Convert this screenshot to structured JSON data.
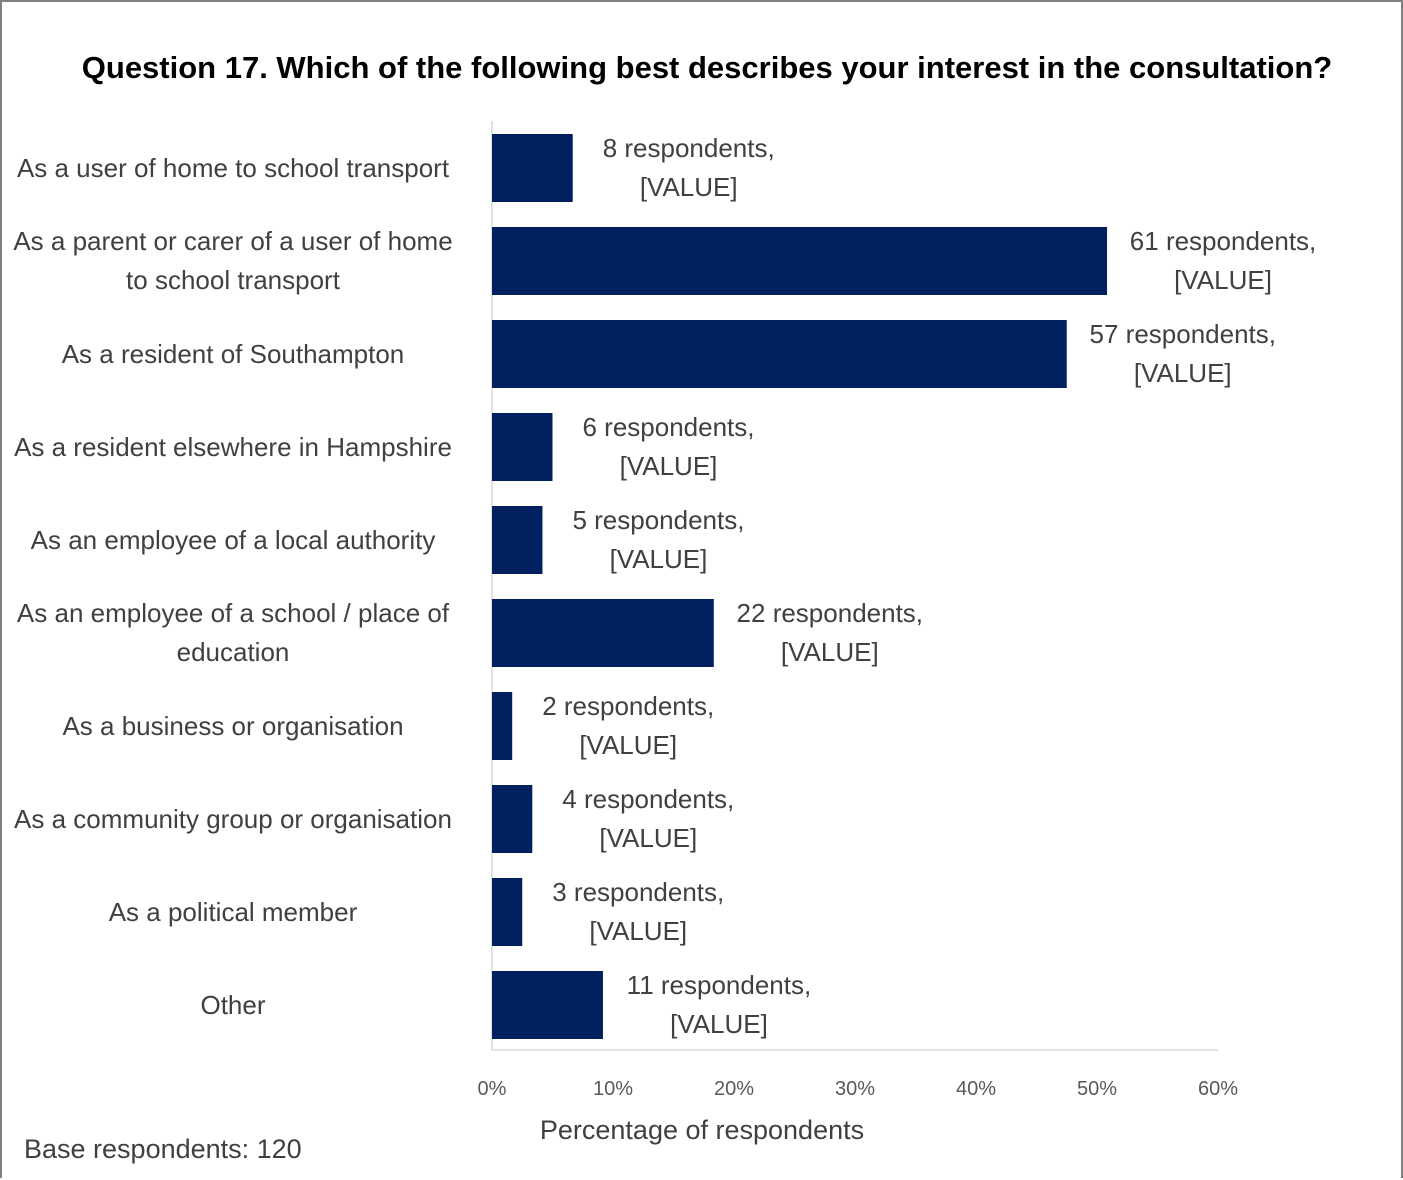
{
  "chart_data": {
    "type": "hbar",
    "title": "Question 17. Which of the following best describes your interest in the consultation?",
    "categories": [
      "As a user of home to school transport",
      "As a parent or carer of a user of home to school transport",
      "As a resident of Southampton",
      "As a resident elsewhere in Hampshire",
      "As an employee of a local authority",
      "As an employee of a school / place of education",
      "As a business or organisation",
      "As a community group or organisation",
      "As a political member",
      "Other"
    ],
    "values": [
      6.67,
      50.83,
      47.5,
      5,
      4.17,
      18.33,
      1.67,
      3.33,
      2.5,
      9.17
    ],
    "data_labels": [
      "8 respondents, [VALUE]",
      "61 respondents, [VALUE]",
      "57 respondents, [VALUE]",
      "6 respondents, [VALUE]",
      "5 respondents, [VALUE]",
      "22 respondents, [VALUE]",
      "2 respondents, [VALUE]",
      "4 respondents, [VALUE]",
      "3 respondents, [VALUE]",
      "11 respondents, [VALUE]"
    ],
    "color": "#002060",
    "xlim": [
      0,
      60
    ],
    "xticks": [
      {
        "value": 0,
        "label": "0%"
      },
      {
        "value": 10,
        "label": "10%"
      },
      {
        "value": 20,
        "label": "20%"
      },
      {
        "value": 30,
        "label": "30%"
      },
      {
        "value": 40,
        "label": "40%"
      },
      {
        "value": 50,
        "label": "50%"
      },
      {
        "value": 60,
        "label": "60%"
      }
    ],
    "xlabel": "Percentage of respondents",
    "note": "Base respondents: 120"
  }
}
